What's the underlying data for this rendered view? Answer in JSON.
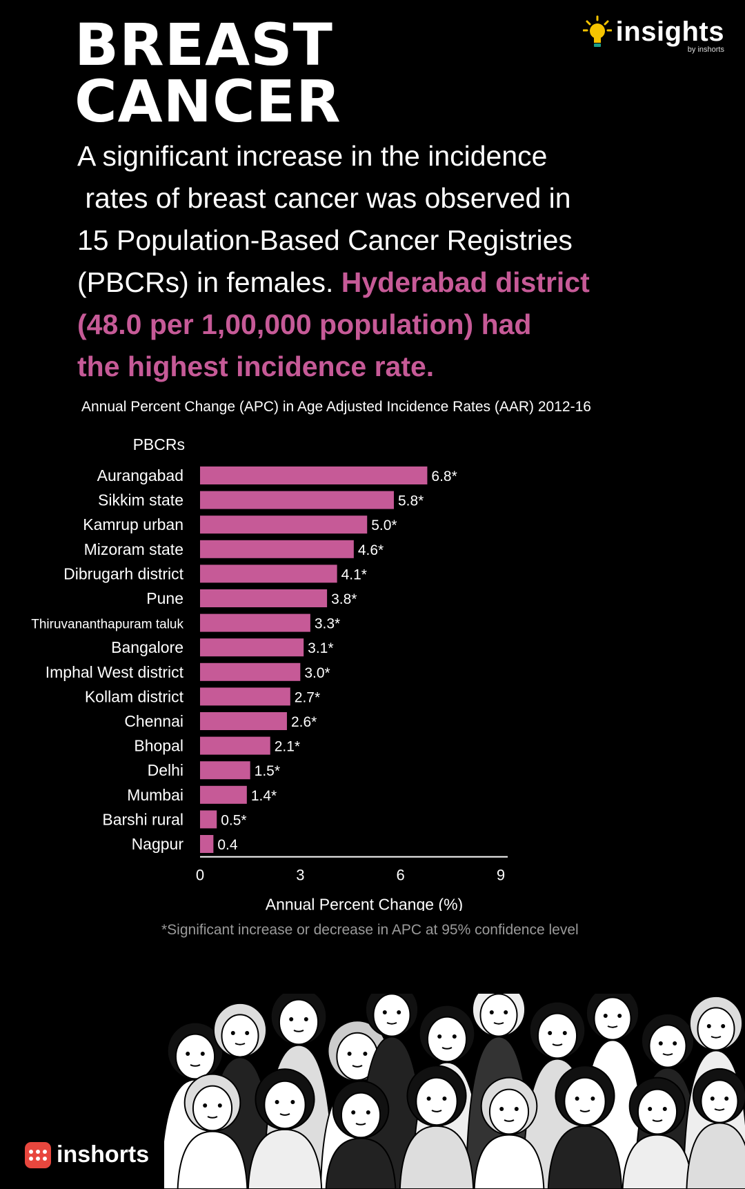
{
  "header": {
    "title_line1": "BREAST",
    "title_line2": "CANCER"
  },
  "logo": {
    "word": "insights",
    "sub": "by inshorts",
    "icon": "lightbulb-icon"
  },
  "intro": {
    "line1": "A significant increase in the incidence",
    "line2": " rates of breast cancer was observed in",
    "line3": "15 Population-Based Cancer Registries",
    "line4_plain": "(PBCRs) in females. ",
    "line4_highlight": "Hyderabad district",
    "line5_highlight": "(48.0 per 1,00,000 population) had",
    "line6_highlight": "the highest incidence rate."
  },
  "colors": {
    "background": "#000000",
    "accent": "#c65a97",
    "bar": "#c65a97",
    "brand_red": "#e8473e"
  },
  "chart_data": {
    "type": "bar",
    "orientation": "horizontal",
    "title": "Annual Percent Change (APC) in Age Adjusted Incidence Rates (AAR) 2012-16",
    "category_axis_title": "PBCRs",
    "xlabel": "Annual Percent Change (%)",
    "xlim": [
      0,
      9
    ],
    "xticks": [
      "0",
      "3",
      "6",
      "9"
    ],
    "grid": false,
    "categories": [
      "Aurangabad",
      "Sikkim state",
      "Kamrup urban",
      "Mizoram state",
      "Dibrugarh district",
      "Pune",
      "Thiruvananthapuram taluk",
      "Bangalore",
      "Imphal West district",
      "Kollam district",
      "Chennai",
      "Bhopal",
      "Delhi",
      "Mumbai",
      "Barshi rural",
      "Nagpur"
    ],
    "values": [
      6.8,
      5.8,
      5.0,
      4.6,
      4.1,
      3.8,
      3.3,
      3.1,
      3.0,
      2.7,
      2.6,
      2.1,
      1.5,
      1.4,
      0.5,
      0.4
    ],
    "labels": [
      "6.8*",
      "5.8*",
      "5.0*",
      "4.6*",
      "4.1*",
      "3.8*",
      "3.3*",
      "3.1*",
      "3.0*",
      "2.7*",
      "2.6*",
      "2.1*",
      "1.5*",
      "1.4*",
      "0.5*",
      "0.4"
    ],
    "footnote": "*Significant increase or decrease in APC at 95% confidence level"
  },
  "footer": {
    "brand": "inshorts",
    "icon": "inshorts-logo-icon",
    "illustration": "crowd-of-women-illustration"
  }
}
